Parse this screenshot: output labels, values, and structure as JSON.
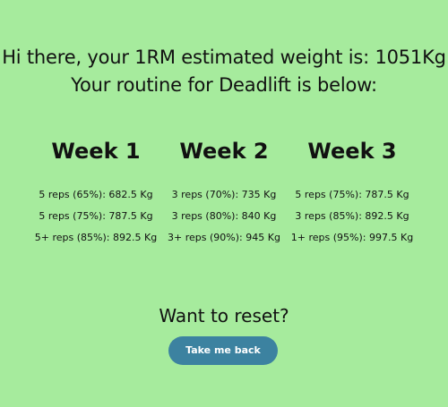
{
  "header": {
    "line1": "Hi there, your 1RM estimated weight is: 1051Kg",
    "line2": "Your routine for Deadlift is below:"
  },
  "weeks": [
    {
      "title": "Week 1",
      "sets": [
        "5 reps (65%): 682.5 Kg",
        "5 reps (75%): 787.5 Kg",
        "5+ reps (85%): 892.5 Kg"
      ]
    },
    {
      "title": "Week 2",
      "sets": [
        "3 reps (70%): 735 Kg",
        "3 reps (80%): 840 Kg",
        "3+ reps (90%): 945 Kg"
      ]
    },
    {
      "title": "Week 3",
      "sets": [
        "5 reps (75%): 787.5 Kg",
        "3 reps (85%): 892.5 Kg",
        "1+ reps (95%): 997.5 Kg"
      ]
    }
  ],
  "reset": {
    "title": "Want to reset?",
    "button_label": "Take me back"
  },
  "colors": {
    "background": "#a6eb9d",
    "button": "#3c82a0",
    "button_text": "#ffffff"
  }
}
